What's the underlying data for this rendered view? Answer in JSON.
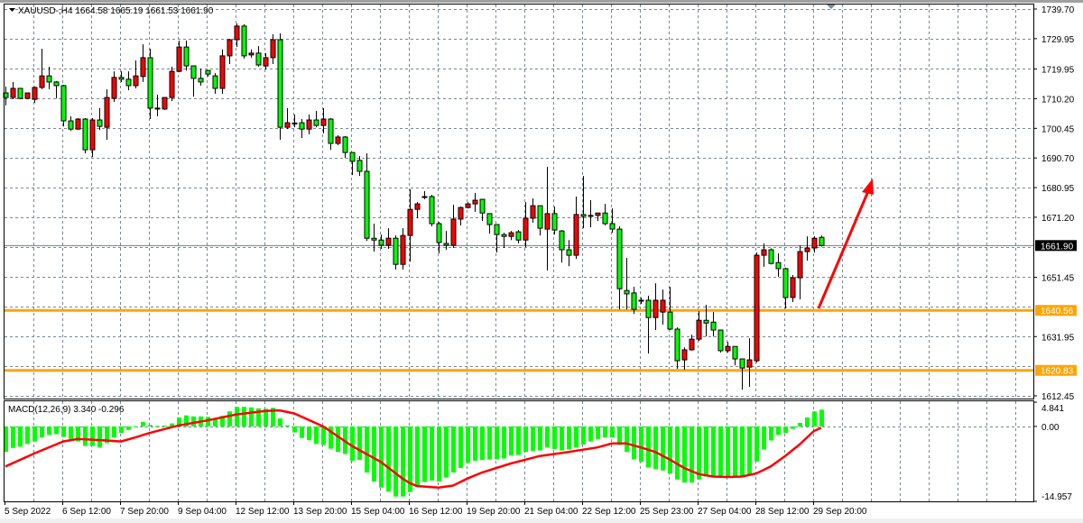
{
  "header": {
    "symbol": "XAUUSD-",
    "timeframe": "H4",
    "ohlc_text": "XAUUSD-,H4  1664.58 1665.19 1661.53 1661.90",
    "menu_icon": "triangle-down-icon"
  },
  "macd_header": "MACD(12,26,9) 3.340 -0.296",
  "colors": {
    "bull_body": "#ff0000",
    "bear_body": "#00ff00",
    "outline": "#000000",
    "grid": "#778899",
    "level": "#ffa500",
    "histogram": "#00ff00",
    "signal": "#ff0000",
    "arrow": "#ff0000",
    "current_price_bg": "#000000"
  },
  "price_axis": {
    "labels": [
      "1739.70",
      "1729.95",
      "1719.95",
      "1710.20",
      "1700.45",
      "1690.70",
      "1680.95",
      "1671.20",
      "1651.45",
      "1631.95",
      "1612.45"
    ],
    "current_price": "1661.90",
    "levels": [
      "1640.56",
      "1620.83"
    ]
  },
  "macd_axis": {
    "labels": [
      "4.841",
      "0.00",
      "-14.957"
    ]
  },
  "time_axis": {
    "labels": [
      "5 Sep 2022",
      "6 Sep 12:00",
      "7 Sep 20:00",
      "9 Sep 04:00",
      "12 Sep 12:00",
      "13 Sep 20:00",
      "15 Sep 04:00",
      "16 Sep 12:00",
      "19 Sep 20:00",
      "21 Sep 04:00",
      "22 Sep 12:00",
      "25 Sep 23:00",
      "27 Sep 04:00",
      "28 Sep 12:00",
      "29 Sep 20:00"
    ]
  },
  "chart_data": {
    "type": "candlestick",
    "title": "XAUUSD-,H4",
    "ylim": [
      1612.45,
      1739.7
    ],
    "grid": true,
    "ohlc_format": [
      "open",
      "high",
      "low",
      "close"
    ],
    "candles": [
      [
        1712.1,
        1714.2,
        1708.0,
        1710.6
      ],
      [
        1710.6,
        1715.7,
        1710.0,
        1713.6
      ],
      [
        1713.6,
        1713.6,
        1710.0,
        1710.3
      ],
      [
        1710.3,
        1712.1,
        1710.0,
        1712.1
      ],
      [
        1710.0,
        1714.2,
        1708.8,
        1713.9
      ],
      [
        1713.9,
        1726.6,
        1713.3,
        1717.7
      ],
      [
        1717.7,
        1720.7,
        1713.3,
        1715.7
      ],
      [
        1715.7,
        1716.0,
        1710.3,
        1714.5
      ],
      [
        1714.5,
        1714.8,
        1701.1,
        1702.9
      ],
      [
        1702.9,
        1704.4,
        1699.6,
        1700.2
      ],
      [
        1700.2,
        1703.8,
        1699.9,
        1703.5
      ],
      [
        1703.5,
        1703.8,
        1692.2,
        1693.4
      ],
      [
        1693.4,
        1703.8,
        1691.0,
        1703.2
      ],
      [
        1703.2,
        1707.1,
        1699.9,
        1701.1
      ],
      [
        1700.8,
        1713.3,
        1696.7,
        1710.6
      ],
      [
        1710.3,
        1719.2,
        1709.1,
        1717.2
      ],
      [
        1717.2,
        1719.2,
        1715.7,
        1716.6
      ],
      [
        1716.6,
        1719.2,
        1713.0,
        1714.5
      ],
      [
        1714.5,
        1722.8,
        1713.6,
        1717.7
      ],
      [
        1717.5,
        1728.1,
        1715.7,
        1723.7
      ],
      [
        1723.7,
        1726.6,
        1703.5,
        1707.1
      ],
      [
        1707.1,
        1711.5,
        1704.4,
        1706.8
      ],
      [
        1706.8,
        1710.6,
        1706.5,
        1710.6
      ],
      [
        1710.6,
        1720.7,
        1709.4,
        1719.2
      ],
      [
        1719.2,
        1729.3,
        1718.9,
        1727.2
      ],
      [
        1727.2,
        1729.3,
        1719.5,
        1721.0
      ],
      [
        1721.0,
        1721.0,
        1710.9,
        1716.9
      ],
      [
        1716.9,
        1720.1,
        1714.5,
        1715.7
      ],
      [
        1719.5,
        1719.5,
        1717.5,
        1718.3
      ],
      [
        1717.7,
        1718.6,
        1711.8,
        1713.6
      ],
      [
        1713.6,
        1726.4,
        1711.8,
        1724.3
      ],
      [
        1724.3,
        1729.9,
        1721.6,
        1729.6
      ],
      [
        1729.6,
        1735.0,
        1727.2,
        1734.1
      ],
      [
        1734.1,
        1734.7,
        1723.4,
        1724.3
      ],
      [
        1724.6,
        1726.4,
        1723.7,
        1725.2
      ],
      [
        1725.2,
        1727.5,
        1720.7,
        1721.3
      ],
      [
        1721.0,
        1725.2,
        1719.8,
        1723.7
      ],
      [
        1723.7,
        1731.4,
        1721.6,
        1729.6
      ],
      [
        1729.6,
        1731.7,
        1696.7,
        1700.8
      ],
      [
        1700.8,
        1707.1,
        1700.2,
        1702.3
      ],
      [
        1702.2,
        1705.0,
        1700.8,
        1702.0
      ],
      [
        1702.3,
        1703.5,
        1697.3,
        1700.2
      ],
      [
        1700.2,
        1705.0,
        1698.5,
        1703.2
      ],
      [
        1703.2,
        1706.2,
        1700.8,
        1701.4
      ],
      [
        1701.4,
        1707.1,
        1698.8,
        1703.5
      ],
      [
        1703.5,
        1703.8,
        1693.4,
        1695.5
      ],
      [
        1695.5,
        1698.2,
        1694.9,
        1697.6
      ],
      [
        1697.6,
        1697.9,
        1690.7,
        1692.5
      ],
      [
        1692.5,
        1692.5,
        1685.1,
        1689.6
      ],
      [
        1689.9,
        1691.3,
        1684.8,
        1686.3
      ],
      [
        1686.3,
        1692.2,
        1663.4,
        1664.3
      ],
      [
        1664.3,
        1669.1,
        1659.9,
        1663.7
      ],
      [
        1663.7,
        1665.5,
        1660.8,
        1662.0
      ],
      [
        1662.0,
        1667.6,
        1660.8,
        1664.3
      ],
      [
        1664.3,
        1665.2,
        1654.0,
        1655.7
      ],
      [
        1655.7,
        1667.6,
        1654.0,
        1665.2
      ],
      [
        1665.2,
        1680.4,
        1656.6,
        1673.8
      ],
      [
        1673.8,
        1676.2,
        1670.9,
        1675.6
      ],
      [
        1677.8,
        1679.8,
        1677.1,
        1678.0
      ],
      [
        1678.0,
        1678.6,
        1668.2,
        1669.1
      ],
      [
        1669.1,
        1669.7,
        1659.3,
        1662.9
      ],
      [
        1662.6,
        1666.7,
        1660.5,
        1662.0
      ],
      [
        1662.0,
        1675.3,
        1661.1,
        1670.6
      ],
      [
        1670.6,
        1674.7,
        1668.5,
        1674.4
      ],
      [
        1674.4,
        1676.2,
        1674.1,
        1675.6
      ],
      [
        1675.6,
        1679.2,
        1673.0,
        1676.8
      ],
      [
        1677.1,
        1677.1,
        1670.0,
        1672.6
      ],
      [
        1672.4,
        1672.4,
        1665.8,
        1668.8
      ],
      [
        1668.8,
        1668.8,
        1659.6,
        1665.5
      ],
      [
        1665.5,
        1666.1,
        1661.1,
        1664.9
      ],
      [
        1664.9,
        1666.7,
        1663.7,
        1666.1
      ],
      [
        1666.4,
        1667.0,
        1662.6,
        1663.7
      ],
      [
        1663.7,
        1676.2,
        1661.4,
        1670.9
      ],
      [
        1670.9,
        1677.4,
        1669.4,
        1675.0
      ],
      [
        1675.0,
        1675.0,
        1665.2,
        1667.6
      ],
      [
        1667.3,
        1687.8,
        1653.7,
        1672.4
      ],
      [
        1672.4,
        1674.7,
        1665.5,
        1667.0
      ],
      [
        1666.7,
        1667.0,
        1656.3,
        1660.5
      ],
      [
        1660.5,
        1663.7,
        1655.1,
        1658.7
      ],
      [
        1658.7,
        1678.0,
        1657.5,
        1672.1
      ],
      [
        1672.1,
        1684.8,
        1667.6,
        1671.5
      ],
      [
        1671.8,
        1676.8,
        1667.9,
        1671.5
      ],
      [
        1671.8,
        1672.6,
        1670.0,
        1672.6
      ],
      [
        1672.6,
        1675.6,
        1668.5,
        1669.1
      ],
      [
        1669.1,
        1674.1,
        1666.1,
        1667.3
      ],
      [
        1667.3,
        1668.2,
        1640.9,
        1647.7
      ],
      [
        1647.1,
        1657.8,
        1640.9,
        1646.0
      ],
      [
        1646.3,
        1648.3,
        1639.4,
        1640.9
      ],
      [
        1643.9,
        1644.8,
        1642.7,
        1643.6
      ],
      [
        1643.9,
        1645.4,
        1626.4,
        1638.2
      ],
      [
        1638.2,
        1649.5,
        1634.1,
        1643.9
      ],
      [
        1640.0,
        1647.4,
        1635.9,
        1643.9
      ],
      [
        1640.0,
        1648.3,
        1634.1,
        1634.4
      ],
      [
        1634.4,
        1635.0,
        1621.3,
        1624.0
      ],
      [
        1624.3,
        1628.4,
        1621.0,
        1627.6
      ],
      [
        1627.6,
        1632.6,
        1627.3,
        1631.1
      ],
      [
        1631.1,
        1640.3,
        1630.5,
        1637.3
      ],
      [
        1637.3,
        1642.4,
        1632.0,
        1636.4
      ],
      [
        1636.7,
        1640.0,
        1632.0,
        1634.1
      ],
      [
        1634.1,
        1634.1,
        1626.7,
        1627.3
      ],
      [
        1627.3,
        1630.2,
        1626.7,
        1628.7
      ],
      [
        1628.7,
        1628.7,
        1622.5,
        1624.6
      ],
      [
        1624.6,
        1624.6,
        1614.5,
        1621.6
      ],
      [
        1621.9,
        1631.4,
        1615.4,
        1624.3
      ],
      [
        1624.0,
        1659.6,
        1623.4,
        1658.7
      ],
      [
        1658.7,
        1662.6,
        1654.9,
        1660.5
      ],
      [
        1660.5,
        1661.0,
        1655.7,
        1656.0
      ],
      [
        1656.3,
        1659.3,
        1651.6,
        1654.3
      ],
      [
        1654.3,
        1654.6,
        1641.2,
        1644.8
      ],
      [
        1644.8,
        1652.2,
        1643.3,
        1651.3
      ],
      [
        1651.3,
        1662.0,
        1644.2,
        1659.9
      ],
      [
        1659.9,
        1664.9,
        1656.9,
        1661.1
      ],
      [
        1661.1,
        1664.9,
        1659.6,
        1664.3
      ],
      [
        1664.58,
        1665.19,
        1661.53,
        1661.9
      ]
    ],
    "horizontal_levels": [
      1640.56,
      1620.83
    ],
    "current_price": 1661.9,
    "annotation": "red arrow pointing up",
    "macd": {
      "params": "12,26,9",
      "ylim": [
        -14.957,
        4.841
      ],
      "histogram": [
        -5.07,
        -4.3,
        -4.05,
        -3.5,
        -3.0,
        -2.2,
        -1.7,
        -1.55,
        -2.1,
        -2.5,
        -3.0,
        -3.9,
        -3.9,
        -4.2,
        -3.3,
        -2.2,
        -1.3,
        -0.7,
        -0.2,
        0.9,
        0.3,
        0.1,
        0.15,
        0.6,
        1.8,
        2.2,
        2.0,
        2.0,
        1.9,
        1.6,
        2.1,
        3.0,
        3.9,
        3.9,
        3.8,
        3.6,
        3.5,
        3.7,
        1.6,
        0.2,
        -1.2,
        -2.3,
        -2.75,
        -3.5,
        -3.7,
        -4.45,
        -5.1,
        -5.5,
        -6.85,
        -6.7,
        -9.2,
        -11.0,
        -12.2,
        -13.0,
        -14.0,
        -14.0,
        -13.1,
        -12.1,
        -11.1,
        -10.8,
        -11.0,
        -10.2,
        -9.2,
        -8.3,
        -7.3,
        -6.85,
        -6.7,
        -6.6,
        -6.55,
        -6.4,
        -5.8,
        -5.7,
        -5.1,
        -4.9,
        -4.8,
        -4.2,
        -4.5,
        -4.8,
        -4.6,
        -4.2,
        -3.6,
        -3.0,
        -2.5,
        -2.2,
        -2.2,
        -3.7,
        -5.1,
        -6.55,
        -7.1,
        -8.2,
        -8.5,
        -8.8,
        -9.4,
        -10.6,
        -11.2,
        -11.2,
        -10.6,
        -10.0,
        -10.0,
        -10.0,
        -10.0,
        -10.0,
        -10.0,
        -9.8,
        -7.0,
        -4.6,
        -2.8,
        -1.7,
        -1.3,
        -0.5,
        0.7,
        1.8,
        3.0,
        3.34
      ],
      "signal_points": [
        [
          0,
          -8.0
        ],
        [
          4,
          -5.4
        ],
        [
          8,
          -3.0
        ],
        [
          10,
          -2.5
        ],
        [
          14,
          -2.8
        ],
        [
          16,
          -3.0
        ],
        [
          18,
          -2.2
        ],
        [
          20,
          -1.3
        ],
        [
          24,
          0.2
        ],
        [
          28,
          1.2
        ],
        [
          32,
          2.4
        ],
        [
          36,
          3.1
        ],
        [
          38,
          3.2
        ],
        [
          40,
          2.6
        ],
        [
          44,
          0.0
        ],
        [
          48,
          -3.9
        ],
        [
          52,
          -7.1
        ],
        [
          55,
          -10.4
        ],
        [
          56,
          -11.3
        ],
        [
          57,
          -11.9
        ],
        [
          60,
          -12.2
        ],
        [
          62,
          -11.8
        ],
        [
          64,
          -10.4
        ],
        [
          66,
          -9.2
        ],
        [
          70,
          -7.4
        ],
        [
          74,
          -5.9
        ],
        [
          78,
          -5.1
        ],
        [
          82,
          -4.2
        ],
        [
          84,
          -3.4
        ],
        [
          86,
          -3.4
        ],
        [
          88,
          -4.2
        ],
        [
          90,
          -5.1
        ],
        [
          92,
          -6.6
        ],
        [
          94,
          -8.3
        ],
        [
          96,
          -9.5
        ],
        [
          98,
          -10.0
        ],
        [
          100,
          -10.1
        ],
        [
          102,
          -10.0
        ],
        [
          104,
          -9.4
        ],
        [
          106,
          -8.0
        ],
        [
          108,
          -5.9
        ],
        [
          110,
          -3.6
        ],
        [
          112,
          -0.9
        ],
        [
          113,
          -0.296
        ]
      ]
    }
  }
}
